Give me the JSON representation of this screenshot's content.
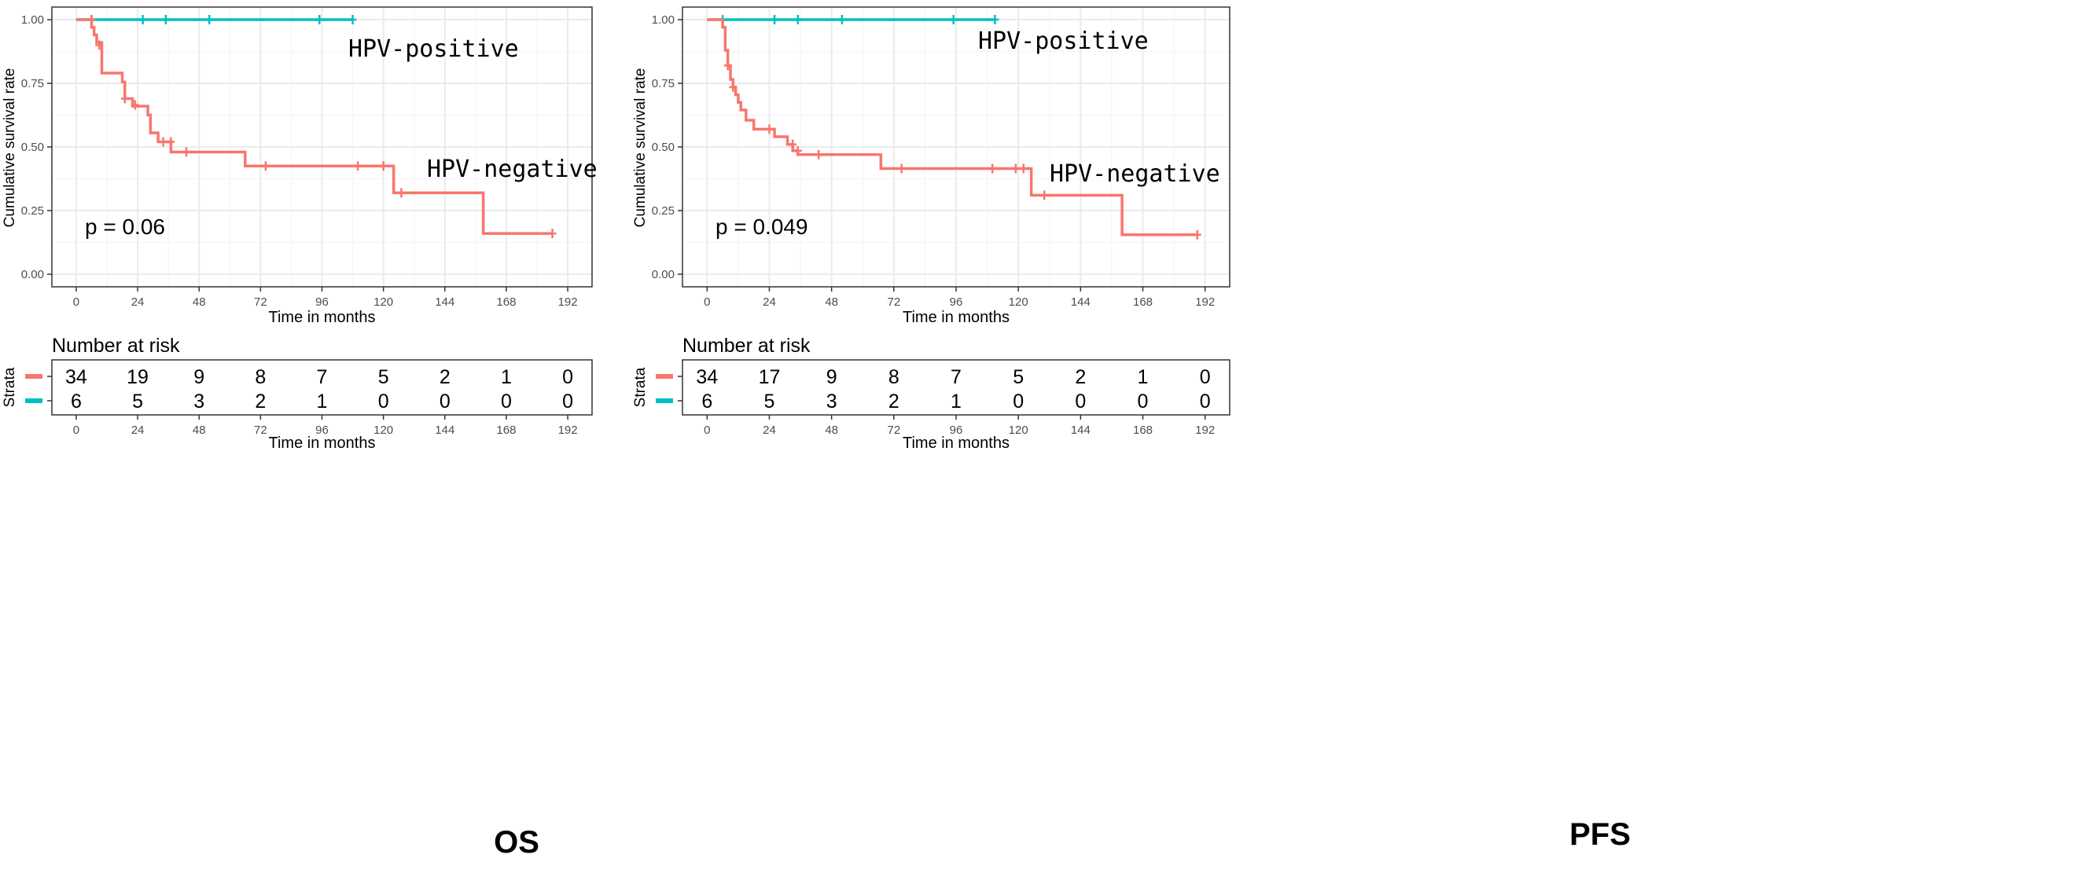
{
  "colors": {
    "negative": "#F8766D",
    "positive": "#00BFC4",
    "grid_major": "#EBEBEB",
    "grid_minor": "#F5F5F5",
    "border": "#333333",
    "axis_text": "#4D4D4D",
    "text": "#000000"
  },
  "chart_data": [
    {
      "type": "line",
      "title": "OS",
      "xlabel": "Time in months",
      "ylabel": "Cumulative survival rate",
      "xlim": [
        0,
        192
      ],
      "ylim": [
        0,
        1
      ],
      "x_ticks": [
        "0",
        "24",
        "48",
        "72",
        "96",
        "120",
        "144",
        "168",
        "192"
      ],
      "y_ticks": [
        "0.00",
        "0.25",
        "0.50",
        "0.75",
        "1.00"
      ],
      "grid": true,
      "p_value": "p = 0.06",
      "series": [
        {
          "name": "HPV-positive",
          "color_key": "positive",
          "steps": [
            [
              0,
              1.0
            ],
            [
              108,
              1.0
            ]
          ],
          "censors": [
            [
              6,
              1.0
            ],
            [
              26,
              1.0
            ],
            [
              35,
              1.0
            ],
            [
              52,
              1.0
            ],
            [
              95,
              1.0
            ],
            [
              108,
              1.0
            ]
          ]
        },
        {
          "name": "HPV-negative",
          "color_key": "negative",
          "steps": [
            [
              0,
              1.0
            ],
            [
              6,
              1.0
            ],
            [
              6,
              0.97
            ],
            [
              7,
              0.97
            ],
            [
              7,
              0.94
            ],
            [
              8,
              0.94
            ],
            [
              8,
              0.91
            ],
            [
              10,
              0.91
            ],
            [
              10,
              0.88
            ],
            [
              10,
              0.88
            ],
            [
              10,
              0.79
            ],
            [
              18,
              0.79
            ],
            [
              18,
              0.755
            ],
            [
              19,
              0.755
            ],
            [
              19,
              0.69
            ],
            [
              22,
              0.69
            ],
            [
              22,
              0.66
            ],
            [
              28,
              0.66
            ],
            [
              28,
              0.625
            ],
            [
              29,
              0.625
            ],
            [
              29,
              0.555
            ],
            [
              32,
              0.555
            ],
            [
              32,
              0.52
            ],
            [
              37,
              0.52
            ],
            [
              37,
              0.48
            ],
            [
              66,
              0.48
            ],
            [
              66,
              0.425
            ],
            [
              124,
              0.425
            ],
            [
              124,
              0.32
            ],
            [
              159,
              0.32
            ],
            [
              159,
              0.16
            ],
            [
              186,
              0.16
            ]
          ],
          "censors": [
            [
              6,
              1.0
            ],
            [
              9,
              0.9
            ],
            [
              19,
              0.69
            ],
            [
              23,
              0.665
            ],
            [
              34,
              0.52
            ],
            [
              37,
              0.52
            ],
            [
              43,
              0.48
            ],
            [
              74,
              0.425
            ],
            [
              110,
              0.425
            ],
            [
              120,
              0.425
            ],
            [
              127,
              0.32
            ],
            [
              186,
              0.16
            ]
          ]
        }
      ],
      "risk_table": {
        "title": "Number at risk",
        "strata_label": "Strata",
        "xlabel": "Time in months",
        "rows": [
          {
            "color_key": "negative",
            "values": [
              "34",
              "19",
              "9",
              "8",
              "7",
              "5",
              "2",
              "1",
              "0"
            ]
          },
          {
            "color_key": "positive",
            "values": [
              "6",
              "5",
              "3",
              "2",
              "1",
              "0",
              "0",
              "0",
              "0"
            ]
          }
        ]
      }
    },
    {
      "type": "line",
      "title": "PFS",
      "xlabel": "Time in months",
      "ylabel": "Cumulative survival rate",
      "xlim": [
        0,
        192
      ],
      "ylim": [
        0,
        1
      ],
      "x_ticks": [
        "0",
        "24",
        "48",
        "72",
        "96",
        "120",
        "144",
        "168",
        "192"
      ],
      "y_ticks": [
        "0.00",
        "0.25",
        "0.50",
        "0.75",
        "1.00"
      ],
      "grid": true,
      "p_value": "p = 0.049",
      "series": [
        {
          "name": "HPV-positive",
          "color_key": "positive",
          "steps": [
            [
              0,
              1.0
            ],
            [
              111,
              1.0
            ]
          ],
          "censors": [
            [
              6,
              1.0
            ],
            [
              26,
              1.0
            ],
            [
              35,
              1.0
            ],
            [
              52,
              1.0
            ],
            [
              95,
              1.0
            ],
            [
              111,
              1.0
            ]
          ]
        },
        {
          "name": "HPV-negative",
          "color_key": "negative",
          "steps": [
            [
              0,
              1.0
            ],
            [
              6,
              1.0
            ],
            [
              6,
              0.97
            ],
            [
              7,
              0.97
            ],
            [
              7,
              0.88
            ],
            [
              8,
              0.88
            ],
            [
              8,
              0.82
            ],
            [
              9,
              0.82
            ],
            [
              9,
              0.765
            ],
            [
              10,
              0.765
            ],
            [
              10,
              0.735
            ],
            [
              11,
              0.735
            ],
            [
              11,
              0.705
            ],
            [
              12,
              0.705
            ],
            [
              12,
              0.675
            ],
            [
              13,
              0.675
            ],
            [
              13,
              0.645
            ],
            [
              15,
              0.645
            ],
            [
              15,
              0.605
            ],
            [
              18,
              0.605
            ],
            [
              18,
              0.57
            ],
            [
              26,
              0.57
            ],
            [
              26,
              0.54
            ],
            [
              31,
              0.54
            ],
            [
              31,
              0.51
            ],
            [
              33,
              0.51
            ],
            [
              33,
              0.485
            ],
            [
              35,
              0.485
            ],
            [
              35,
              0.47
            ],
            [
              67,
              0.47
            ],
            [
              67,
              0.415
            ],
            [
              125,
              0.415
            ],
            [
              125,
              0.31
            ],
            [
              160,
              0.31
            ],
            [
              160,
              0.155
            ],
            [
              189,
              0.155
            ]
          ],
          "censors": [
            [
              8,
              0.82
            ],
            [
              10,
              0.735
            ],
            [
              24,
              0.57
            ],
            [
              33,
              0.51
            ],
            [
              35,
              0.485
            ],
            [
              43,
              0.47
            ],
            [
              75,
              0.415
            ],
            [
              110,
              0.415
            ],
            [
              119,
              0.415
            ],
            [
              122,
              0.415
            ],
            [
              130,
              0.31
            ],
            [
              189,
              0.155
            ]
          ]
        }
      ],
      "risk_table": {
        "title": "Number at risk",
        "strata_label": "Strata",
        "xlabel": "Time in months",
        "rows": [
          {
            "color_key": "negative",
            "values": [
              "34",
              "17",
              "9",
              "8",
              "7",
              "5",
              "2",
              "1",
              "0"
            ]
          },
          {
            "color_key": "positive",
            "values": [
              "6",
              "5",
              "3",
              "2",
              "1",
              "0",
              "0",
              "0",
              "0"
            ]
          }
        ]
      }
    }
  ]
}
